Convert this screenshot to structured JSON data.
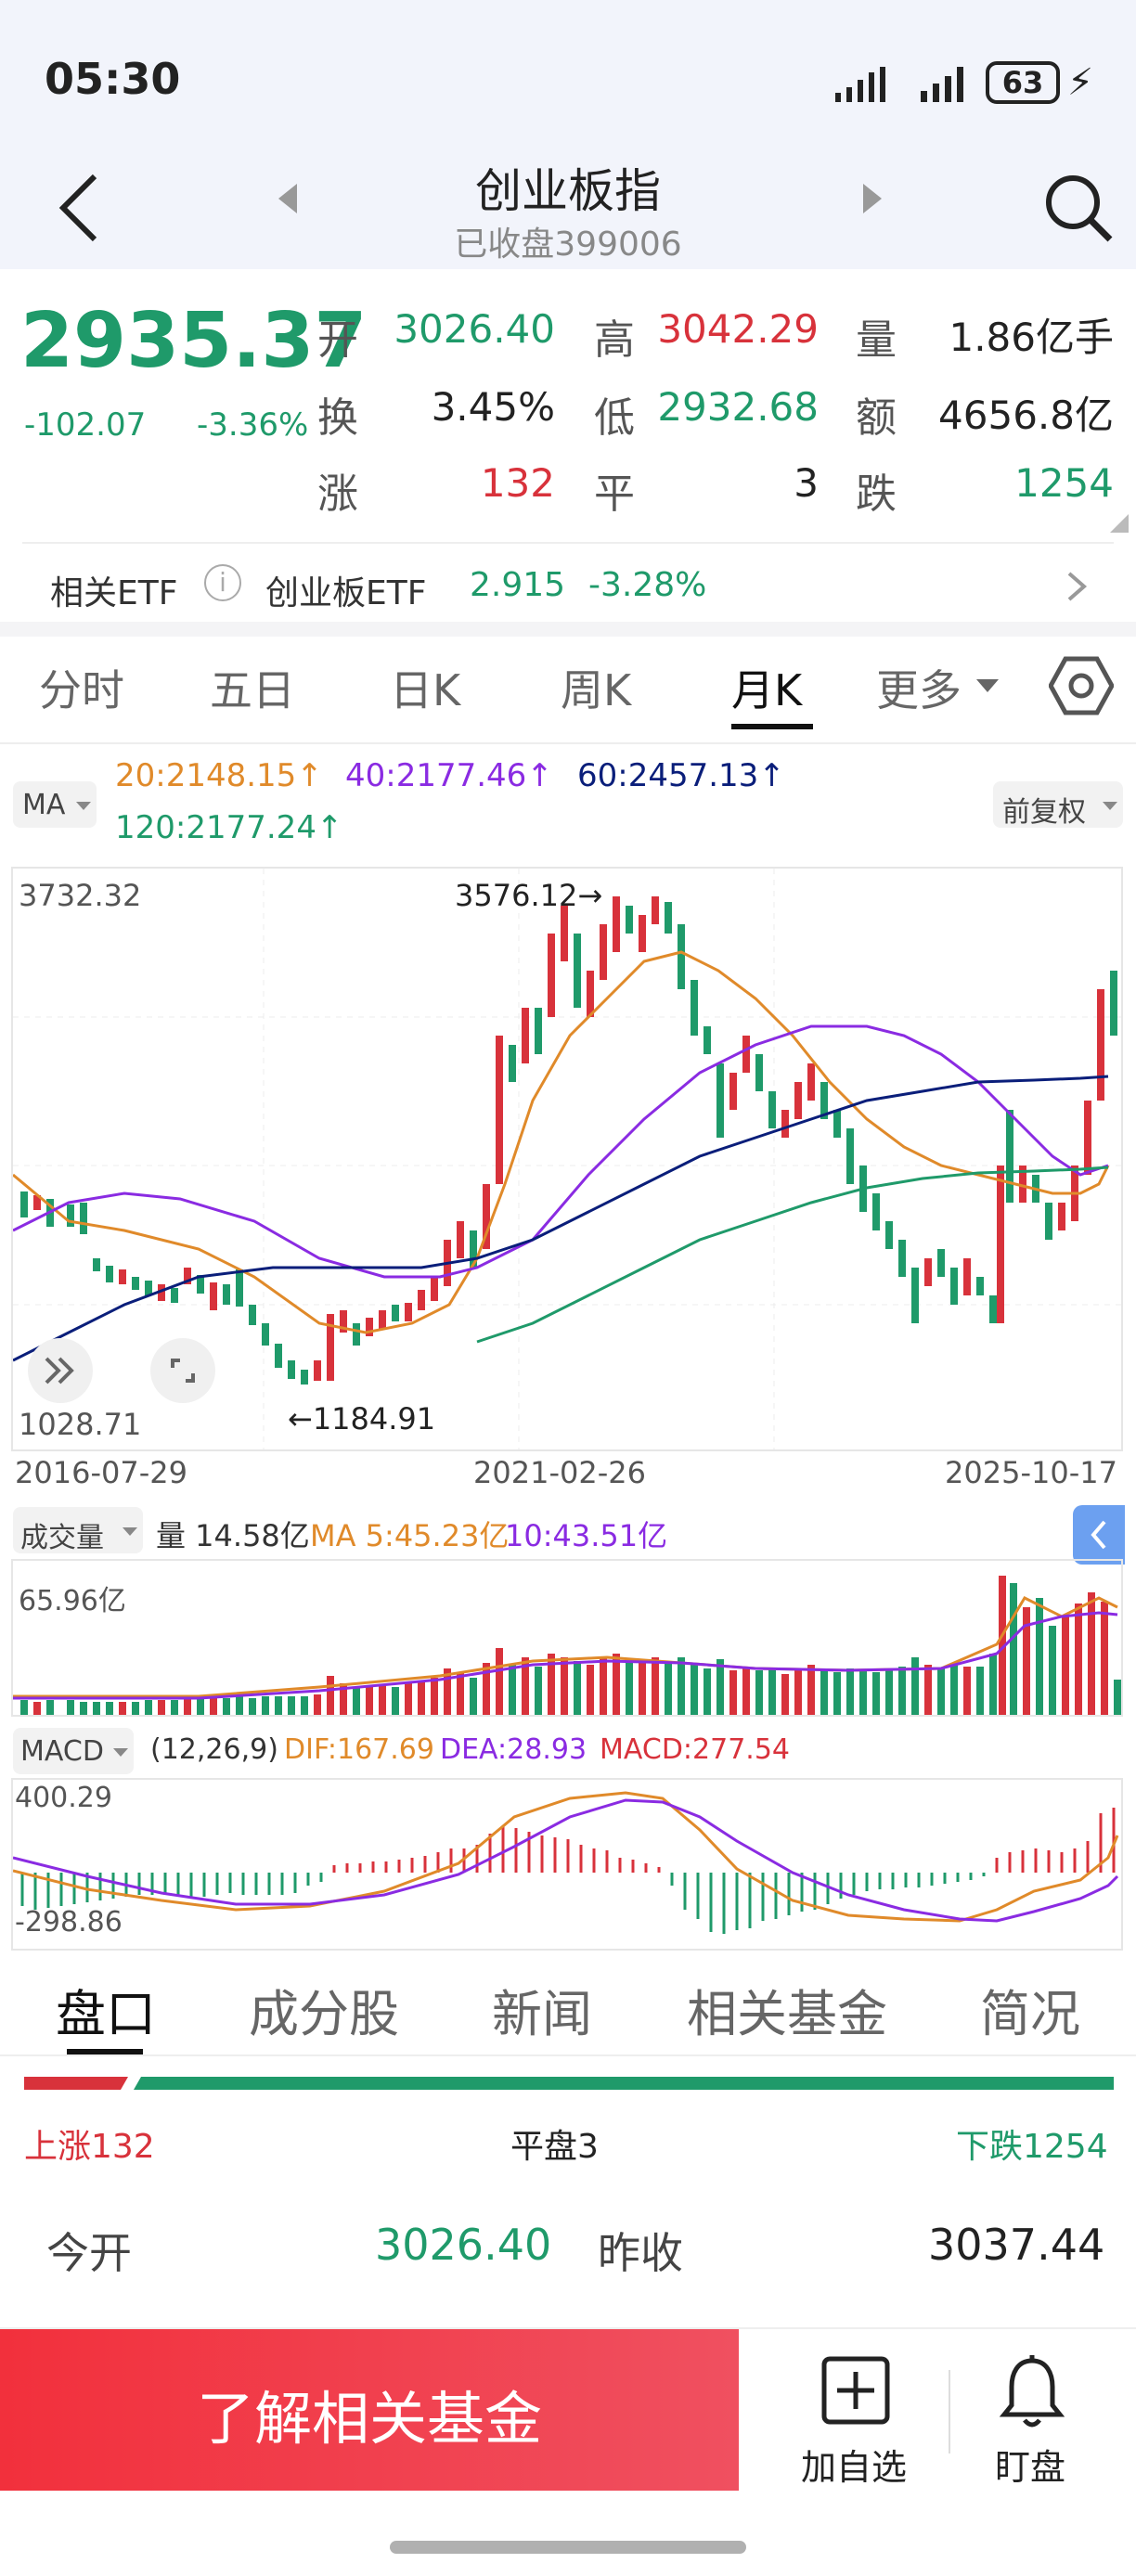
{
  "status": {
    "time": "05:30",
    "battery": "63"
  },
  "header": {
    "title": "创业板指",
    "subtitle": "已收盘399006"
  },
  "quote": {
    "price": "2935.37",
    "change": "-102.07",
    "change_pct": "-3.36%",
    "labels": {
      "open": "开",
      "high": "高",
      "volume": "量",
      "turnover": "换",
      "low": "低",
      "amount": "额",
      "up": "涨",
      "flat": "平",
      "down": "跌"
    },
    "open": "3026.40",
    "high": "3042.29",
    "volume": "1.86亿手",
    "turnover": "3.45%",
    "low": "2932.68",
    "amount": "4656.8亿",
    "up": "132",
    "flat": "3",
    "down": "1254"
  },
  "etf": {
    "label": "相关ETF",
    "name": "创业板ETF",
    "price": "2.915",
    "change": "-3.28%"
  },
  "tabs": [
    "分时",
    "五日",
    "日K",
    "周K",
    "月K",
    "更多"
  ],
  "active_tab": "月K",
  "kline": {
    "ma_label": "MA",
    "ma20": "20:2148.15↑",
    "ma40": "40:2177.46↑",
    "ma60": "60:2457.13↑",
    "ma120": "120:2177.24↑",
    "adjust": "前复权",
    "ymax": "3732.32",
    "ymin": "1028.71",
    "hi_mark": "3576.12→",
    "lo_mark": "←1184.91",
    "dates": [
      "2016-07-29",
      "2021-02-26",
      "2025-10-17"
    ]
  },
  "volume": {
    "label": "成交量",
    "current": "量 14.58亿",
    "ma5": "MA 5:45.23亿",
    "ma10": "10:43.51亿",
    "ymax": "65.96亿"
  },
  "macd": {
    "label": "MACD",
    "params": "(12,26,9)",
    "dif": "DIF:167.69",
    "dea": "DEA:28.93",
    "macd": "MACD:277.54",
    "ymax": "400.29",
    "ymin": "-298.86"
  },
  "bottom_tabs": [
    "盘口",
    "成分股",
    "新闻",
    "相关基金",
    "简况"
  ],
  "breadth": {
    "up": "上涨132",
    "flat": "平盘3",
    "down": "下跌1254",
    "up_ratio": 0.095
  },
  "detail": {
    "open_label": "今开",
    "open": "3026.40",
    "prev_label": "昨收",
    "prev": "3037.44"
  },
  "actions": {
    "fund": "了解相关基金",
    "add": "加自选",
    "watch": "盯盘"
  },
  "colors": {
    "up": "#d8323b",
    "down": "#1f9a6a",
    "ma20": "#e08a2a",
    "ma40": "#8a2be2",
    "ma60": "#0a1e7a",
    "ma120": "#1f9a6a"
  }
}
